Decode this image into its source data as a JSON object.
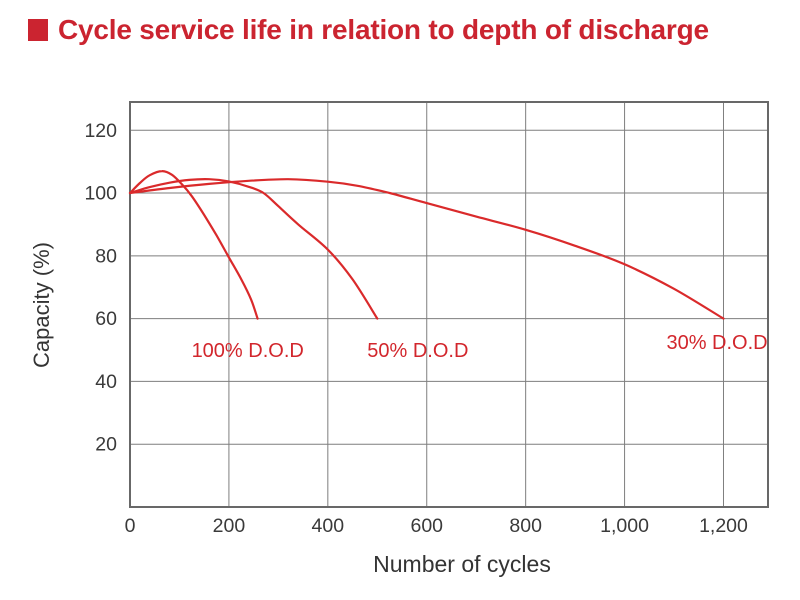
{
  "header": {
    "title": "Cycle service life in relation to depth of discharge",
    "title_color": "#cb2430",
    "bullet_icon": "red-square",
    "bullet_color": "#cb2430"
  },
  "chart_data": {
    "type": "line",
    "title": "Cycle service life in relation to depth of discharge",
    "xlabel": "Number of cycles",
    "ylabel": "Capacity (%)",
    "xlim": [
      0,
      1290
    ],
    "ylim": [
      0,
      129
    ],
    "grid": true,
    "legend_position": "inline-labels",
    "x_ticks": [
      0,
      200,
      400,
      600,
      800,
      1000,
      1200
    ],
    "x_tick_labels": [
      "0",
      "200",
      "400",
      "600",
      "800",
      "1,000",
      "1,200"
    ],
    "y_ticks": [
      20,
      40,
      60,
      80,
      100,
      120
    ],
    "y_tick_labels": [
      "20",
      "40",
      "60",
      "80",
      "100",
      "120"
    ],
    "line_color": "#da2a2b",
    "label_color": "#d2262c",
    "grid_color": "#7e7e7e",
    "border_color": "#686868",
    "tick_text_color": "#3a3a3a",
    "axis_title_color": "#343434",
    "series": [
      {
        "name": "100% D.O.D",
        "label_pos": [
          238,
          50
        ],
        "points": [
          [
            0,
            100
          ],
          [
            20,
            103.2
          ],
          [
            40,
            105.7
          ],
          [
            65,
            107
          ],
          [
            85,
            105.8
          ],
          [
            105,
            102.8
          ],
          [
            125,
            99
          ],
          [
            150,
            93
          ],
          [
            175,
            86.5
          ],
          [
            200,
            79.5
          ],
          [
            225,
            72.5
          ],
          [
            245,
            66
          ],
          [
            258,
            60
          ]
        ]
      },
      {
        "name": "50% D.O.D",
        "label_pos": [
          582,
          50
        ],
        "points": [
          [
            0,
            100
          ],
          [
            40,
            101.9
          ],
          [
            80,
            103.3
          ],
          [
            120,
            104.2
          ],
          [
            160,
            104.4
          ],
          [
            200,
            103.7
          ],
          [
            240,
            102
          ],
          [
            270,
            100
          ],
          [
            300,
            95.8
          ],
          [
            340,
            90
          ],
          [
            400,
            82
          ],
          [
            450,
            72.5
          ],
          [
            500,
            60
          ]
        ]
      },
      {
        "name": "30% D.O.D",
        "label_pos": [
          1187,
          52.5
        ],
        "points": [
          [
            0,
            100
          ],
          [
            80,
            101.6
          ],
          [
            160,
            102.9
          ],
          [
            240,
            103.9
          ],
          [
            320,
            104.4
          ],
          [
            400,
            103.6
          ],
          [
            460,
            102.3
          ],
          [
            525,
            100
          ],
          [
            600,
            96.8
          ],
          [
            700,
            92.5
          ],
          [
            800,
            88.3
          ],
          [
            900,
            83.2
          ],
          [
            1000,
            77.3
          ],
          [
            1100,
            69.5
          ],
          [
            1200,
            60
          ]
        ]
      }
    ]
  }
}
